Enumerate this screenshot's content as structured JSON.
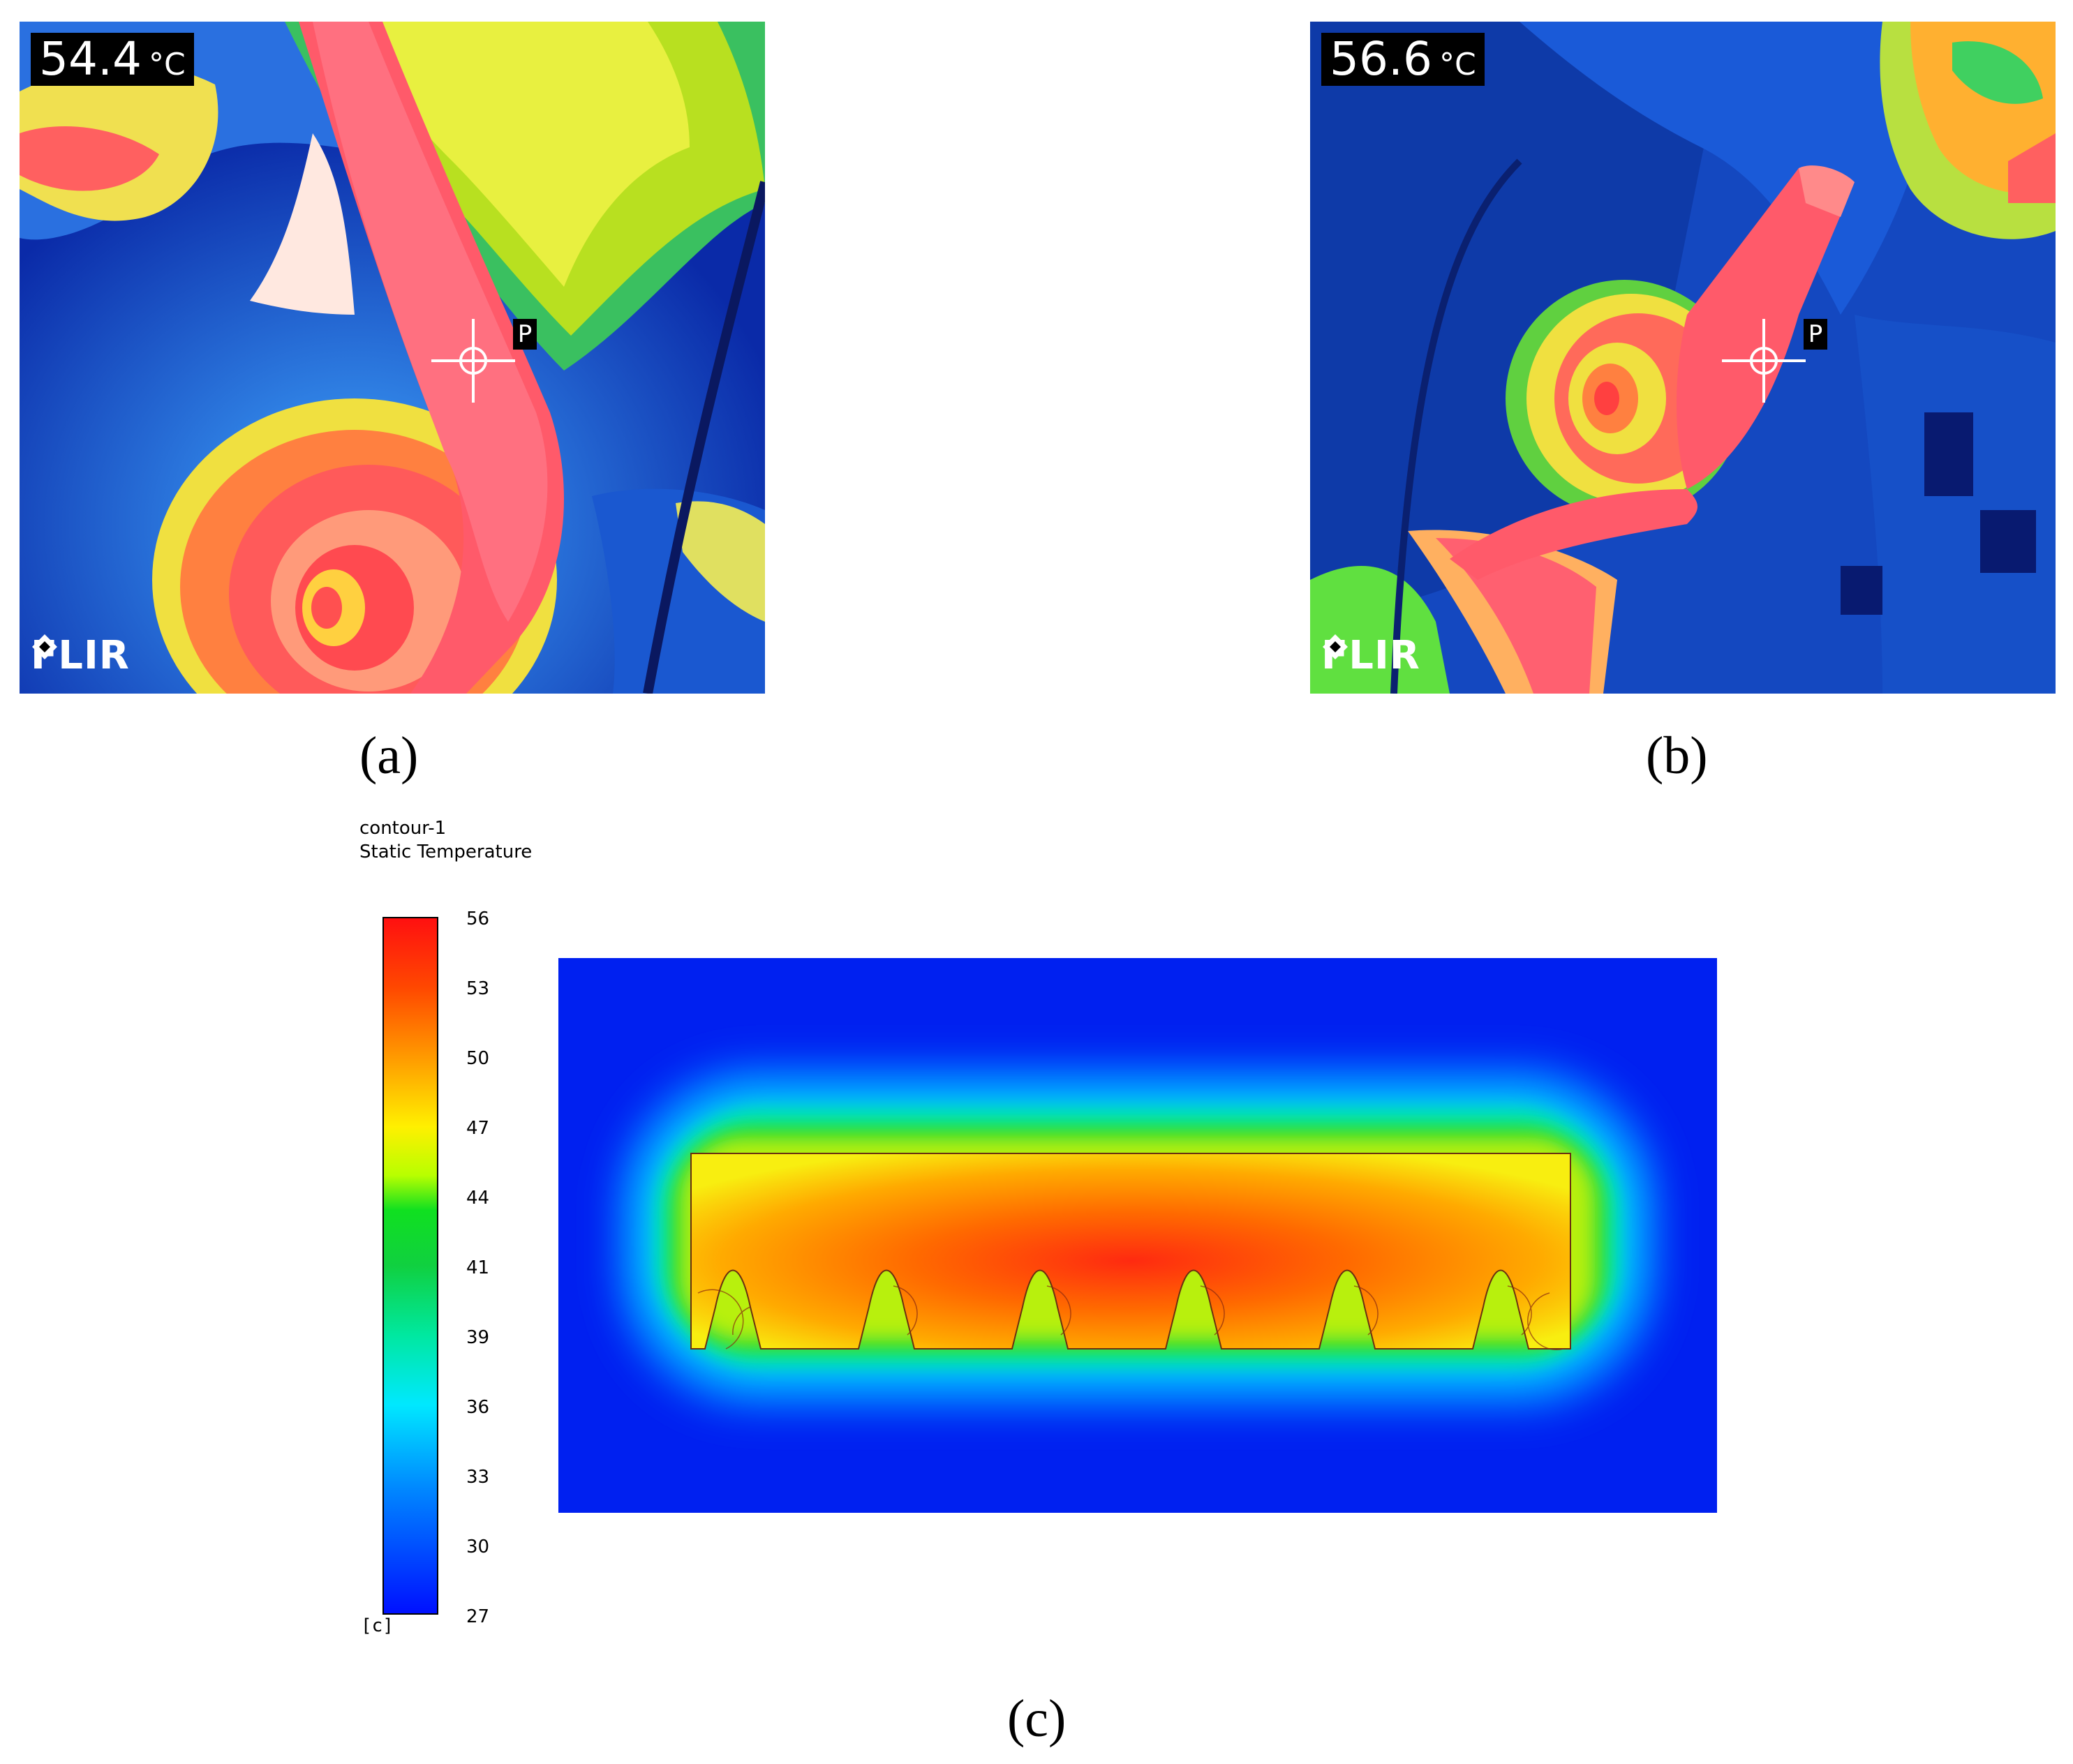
{
  "panels": [
    {
      "id": "a",
      "temperature": "54.4",
      "unit": "°C",
      "spot_marker": "P",
      "brand": "FLIR",
      "caption": "(a)"
    },
    {
      "id": "b",
      "temperature": "56.6",
      "unit": "°C",
      "spot_marker": "P",
      "brand": "FLIR",
      "caption": "(b)"
    }
  ],
  "simulation": {
    "caption": "(c)",
    "legend_name": "contour-1",
    "legend_quantity": "Static Temperature",
    "units": "[c]",
    "ticks": [
      "56",
      "53",
      "50",
      "47",
      "44",
      "41",
      "39",
      "36",
      "33",
      "30",
      "27"
    ],
    "range": [
      27,
      56
    ],
    "colormap": [
      "#ff1010",
      "#ff9a00",
      "#fff000",
      "#10d040",
      "#00e8ff",
      "#0010ff"
    ]
  }
}
